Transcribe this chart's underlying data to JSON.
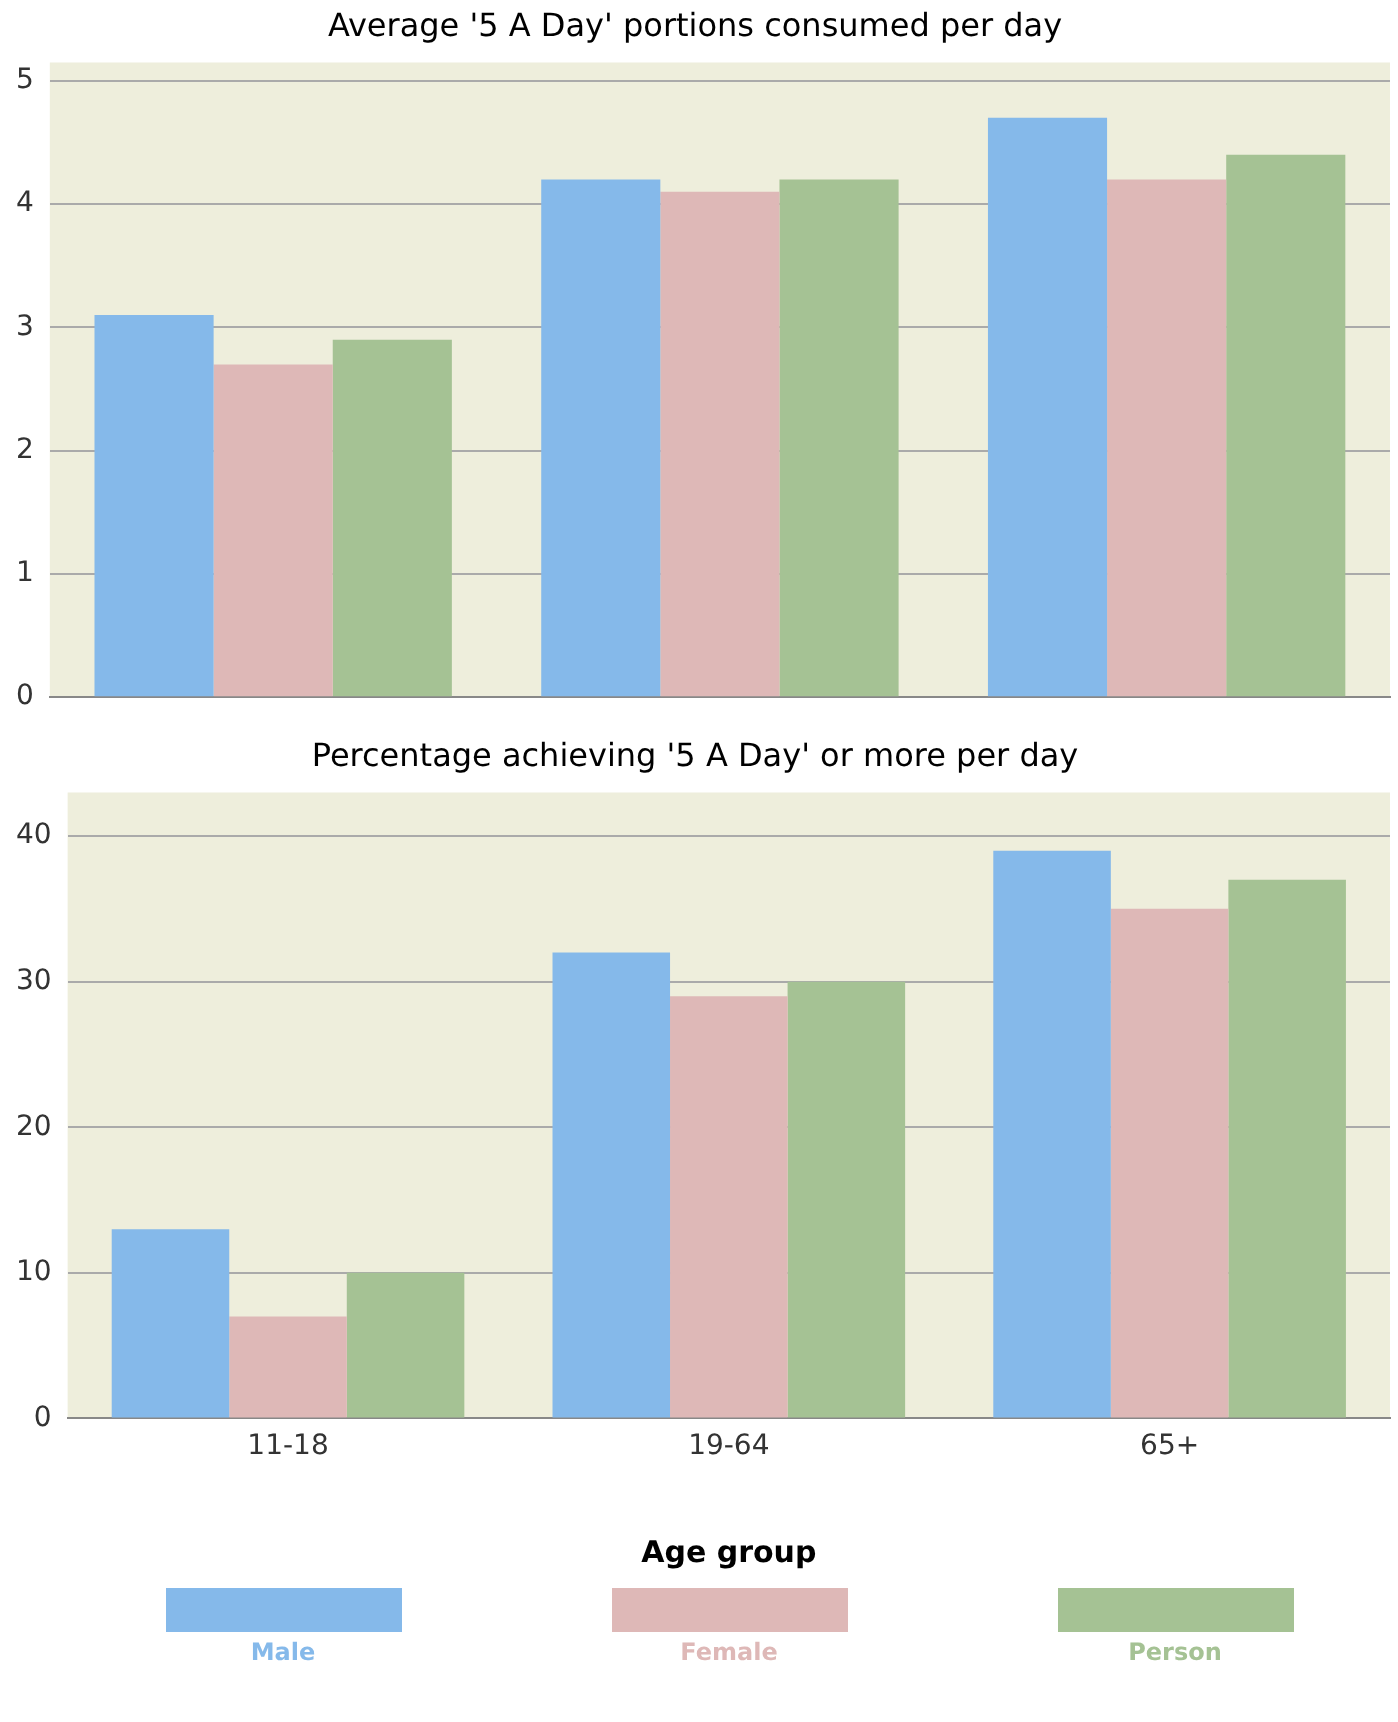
{
  "chart_data": [
    {
      "type": "bar",
      "title": "Average '5 A Day' portions consumed per day",
      "categories": [
        null,
        null,
        null
      ],
      "series": [
        {
          "color": "#85b9ea",
          "values": [
            3.1,
            4.2,
            4.7
          ]
        },
        {
          "color": "#deb8b7",
          "values": [
            2.7,
            4.1,
            4.2
          ]
        },
        {
          "color": "#a5c294",
          "values": [
            2.9,
            4.2,
            4.4
          ]
        }
      ],
      "ylim": [
        0,
        5.15
      ],
      "yticks": [
        0,
        1,
        2,
        3,
        4,
        5
      ],
      "grid": "y",
      "tick_labels": "y"
    },
    {
      "type": "bar",
      "title": "Percentage achieving '5 A Day' or more per day",
      "xlabel": "Age group",
      "categories": [
        "11-18",
        "19-64",
        "65+"
      ],
      "series": [
        {
          "name": "Male",
          "color": "#85b9ea",
          "values": [
            13,
            32,
            39
          ]
        },
        {
          "name": "Female",
          "color": "#deb8b7",
          "values": [
            7,
            29,
            35
          ]
        },
        {
          "name": "Person",
          "color": "#a5c294",
          "values": [
            10,
            30,
            37
          ]
        }
      ],
      "ylim": [
        0,
        43
      ],
      "yticks": [
        0,
        10,
        20,
        30,
        40
      ],
      "grid": "y",
      "legend": "bottom"
    }
  ]
}
